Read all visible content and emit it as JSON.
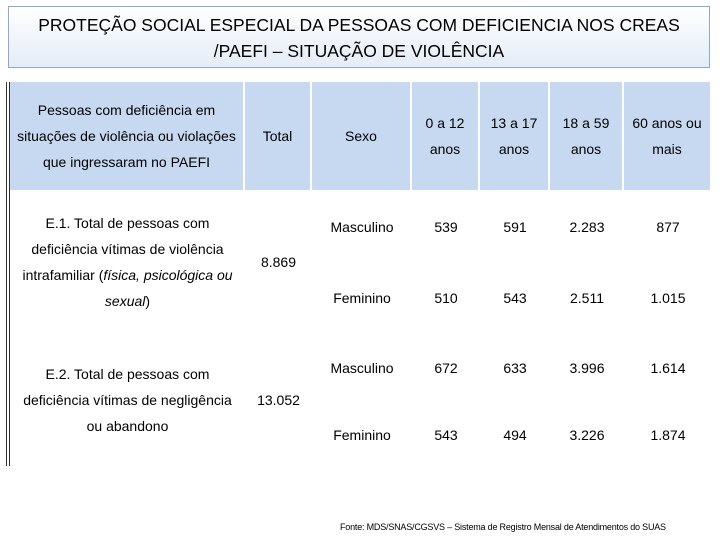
{
  "header": {
    "title_lines": [
      "PROTEÇÃO SOCIAL ESPECIAL DA PESSOAS COM DEFICIENCIA NOS CREAS",
      "/PAEFI – SITUAÇÃO DE VIOLÊNCIA"
    ]
  },
  "table": {
    "columns": [
      "Pessoas com deficiência em situações de violência ou violações que ingressaram no PAEFI",
      "Total",
      "Sexo",
      "0 a 12 anos",
      "13 a 17 anos",
      "18 a 59 anos",
      "60 anos ou mais"
    ],
    "groups": [
      {
        "label_parts": [
          "E.1. Total de pessoas com deficiência vítimas de violência intrafamiliar (",
          "física, psicológica ou sexual",
          ")"
        ],
        "total": "8.869",
        "rows": [
          [
            "Masculino",
            "539",
            "591",
            "2.283",
            "877"
          ],
          [
            "Feminino",
            "510",
            "543",
            "2.511",
            "1.015"
          ]
        ]
      },
      {
        "label_parts": [
          "E.2. Total de pessoas com deficiência vítimas de negligência ou abandono"
        ],
        "total": "13.052",
        "rows": [
          [
            "Masculino",
            "672",
            "633",
            "3.996",
            "1.614"
          ],
          [
            "Feminino",
            "543",
            "494",
            "3.226",
            "1.874"
          ]
        ]
      }
    ]
  },
  "footer": {
    "source": "Fonte: MDS/SNAS/CGSVS – Sistema de Registro Mensal de Atendimentos do SUAS"
  }
}
